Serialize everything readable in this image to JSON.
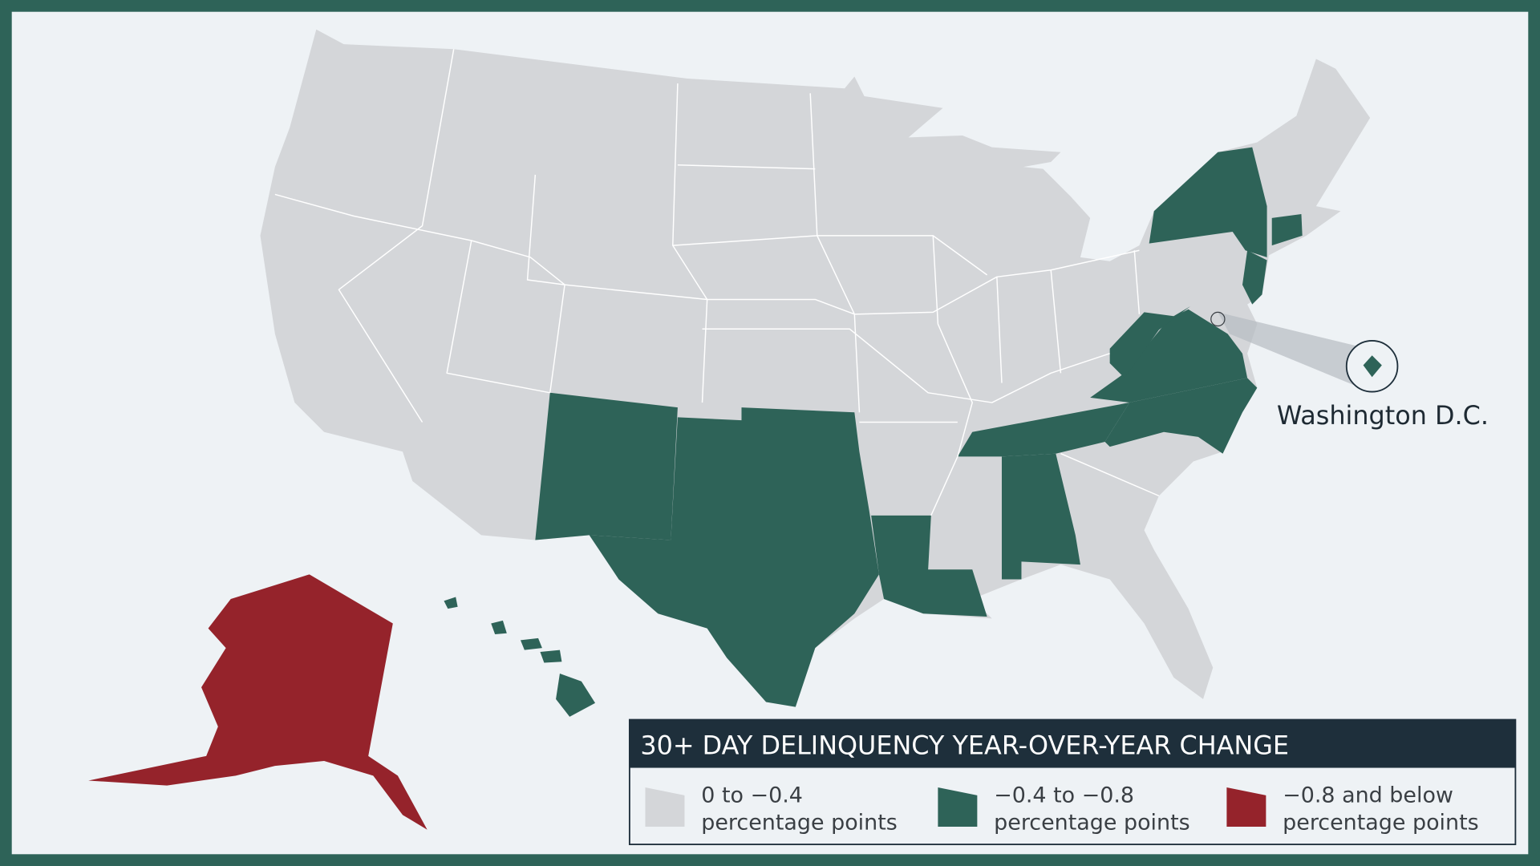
{
  "map": {
    "callout": "Washington D.C.",
    "legend": {
      "title": "30+ DAY DELINQUENCY YEAR-OVER-YEAR CHANGE",
      "items": [
        {
          "range": "0 to −0.4",
          "unit": "percentage points",
          "color": "#d4d6d9"
        },
        {
          "range": "−0.4 to −0.8",
          "unit": "percentage points",
          "color": "#2e6358"
        },
        {
          "range": "−0.8 and below",
          "unit": "percentage points",
          "color": "#95232b"
        }
      ]
    }
  }
}
